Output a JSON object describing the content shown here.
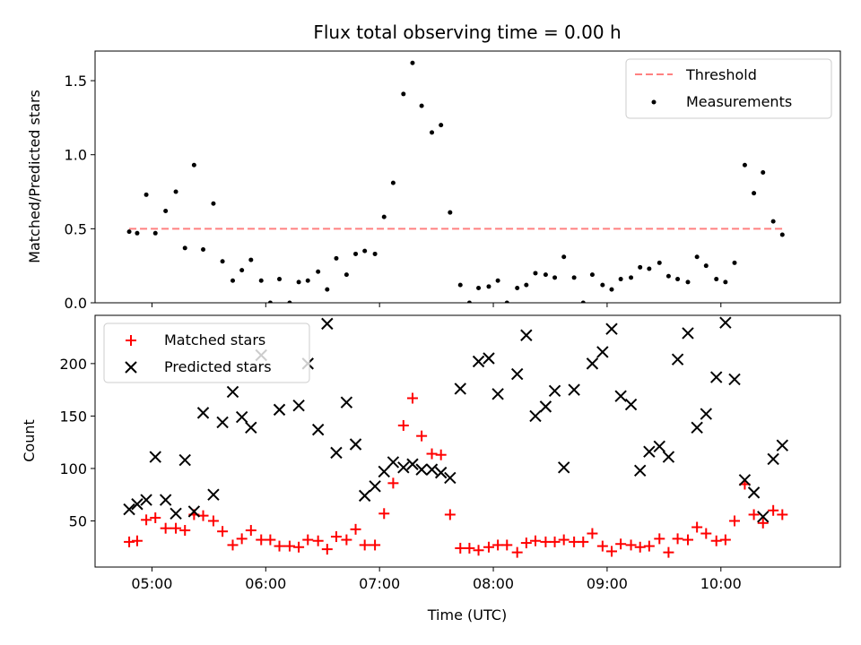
{
  "chart_data": {
    "title": "Flux total observing time = 0.00 h",
    "xlabel": "Time (UTC)",
    "x_ticks": [
      "05:00",
      "06:00",
      "07:00",
      "08:00",
      "09:00",
      "10:00"
    ],
    "x_tick_hours": [
      5,
      6,
      7,
      8,
      9,
      10
    ],
    "xlim": [
      4.5,
      11.05
    ],
    "panels": [
      {
        "type": "scatter",
        "ylabel": "Matched/Predicted stars",
        "ylim": [
          0,
          1.7
        ],
        "y_ticks": [
          0.0,
          0.5,
          1.0,
          1.5
        ],
        "y_tick_labels": [
          "0.0",
          "0.5",
          "1.0",
          "1.5"
        ],
        "legend_position": "top-right",
        "threshold": {
          "name": "Threshold",
          "value": 0.5,
          "x_range": [
            4.8,
            10.55
          ],
          "color": "#ff8080"
        },
        "measurements": {
          "name": "Measurements",
          "color": "#000000",
          "points": [
            [
              4.8,
              0.48
            ],
            [
              4.87,
              0.47
            ],
            [
              4.95,
              0.73
            ],
            [
              5.03,
              0.47
            ],
            [
              5.12,
              0.62
            ],
            [
              5.21,
              0.75
            ],
            [
              5.29,
              0.37
            ],
            [
              5.37,
              0.93
            ],
            [
              5.45,
              0.36
            ],
            [
              5.54,
              0.67
            ],
            [
              5.62,
              0.28
            ],
            [
              5.71,
              0.15
            ],
            [
              5.79,
              0.22
            ],
            [
              5.87,
              0.29
            ],
            [
              5.96,
              0.15
            ],
            [
              6.04,
              0.0
            ],
            [
              6.12,
              0.16
            ],
            [
              6.21,
              0.0
            ],
            [
              6.29,
              0.14
            ],
            [
              6.37,
              0.15
            ],
            [
              6.46,
              0.21
            ],
            [
              6.54,
              0.09
            ],
            [
              6.62,
              0.3
            ],
            [
              6.71,
              0.19
            ],
            [
              6.79,
              0.33
            ],
            [
              6.87,
              0.35
            ],
            [
              6.96,
              0.33
            ],
            [
              7.04,
              0.58
            ],
            [
              7.12,
              0.81
            ],
            [
              7.21,
              1.41
            ],
            [
              7.29,
              1.62
            ],
            [
              7.37,
              1.33
            ],
            [
              7.46,
              1.15
            ],
            [
              7.54,
              1.2
            ],
            [
              7.62,
              0.61
            ],
            [
              7.71,
              0.12
            ],
            [
              7.79,
              0.0
            ],
            [
              7.87,
              0.1
            ],
            [
              7.96,
              0.11
            ],
            [
              8.04,
              0.15
            ],
            [
              8.12,
              0.0
            ],
            [
              8.21,
              0.1
            ],
            [
              8.29,
              0.12
            ],
            [
              8.37,
              0.2
            ],
            [
              8.46,
              0.19
            ],
            [
              8.54,
              0.17
            ],
            [
              8.62,
              0.31
            ],
            [
              8.71,
              0.17
            ],
            [
              8.79,
              0.0
            ],
            [
              8.87,
              0.19
            ],
            [
              8.96,
              0.12
            ],
            [
              9.04,
              0.09
            ],
            [
              9.12,
              0.16
            ],
            [
              9.21,
              0.17
            ],
            [
              9.29,
              0.24
            ],
            [
              9.37,
              0.23
            ],
            [
              9.46,
              0.27
            ],
            [
              9.54,
              0.18
            ],
            [
              9.62,
              0.16
            ],
            [
              9.71,
              0.14
            ],
            [
              9.79,
              0.31
            ],
            [
              9.87,
              0.25
            ],
            [
              9.96,
              0.16
            ],
            [
              10.04,
              0.14
            ],
            [
              10.12,
              0.27
            ],
            [
              10.21,
              0.93
            ],
            [
              10.29,
              0.74
            ],
            [
              10.37,
              0.88
            ],
            [
              10.46,
              0.55
            ],
            [
              10.54,
              0.46
            ]
          ]
        }
      },
      {
        "type": "scatter",
        "ylabel": "Count",
        "ylim": [
          6,
          246
        ],
        "y_ticks": [
          50,
          100,
          150,
          200
        ],
        "y_tick_labels": [
          "50",
          "100",
          "150",
          "200"
        ],
        "legend_position": "top-left",
        "series": [
          {
            "name": "Matched stars",
            "marker": "plus",
            "color": "#ff0000",
            "points": [
              [
                4.8,
                30
              ],
              [
                4.87,
                31
              ],
              [
                4.95,
                51
              ],
              [
                5.03,
                53
              ],
              [
                5.12,
                43
              ],
              [
                5.21,
                43
              ],
              [
                5.29,
                41
              ],
              [
                5.37,
                56
              ],
              [
                5.45,
                55
              ],
              [
                5.54,
                50
              ],
              [
                5.62,
                40
              ],
              [
                5.71,
                27
              ],
              [
                5.79,
                33
              ],
              [
                5.87,
                41
              ],
              [
                5.96,
                32
              ],
              [
                6.04,
                32
              ],
              [
                6.12,
                26
              ],
              [
                6.21,
                26
              ],
              [
                6.29,
                25
              ],
              [
                6.37,
                32
              ],
              [
                6.46,
                31
              ],
              [
                6.54,
                23
              ],
              [
                6.62,
                35
              ],
              [
                6.71,
                32
              ],
              [
                6.79,
                42
              ],
              [
                6.87,
                27
              ],
              [
                6.96,
                27
              ],
              [
                7.04,
                57
              ],
              [
                7.12,
                86
              ],
              [
                7.21,
                141
              ],
              [
                7.29,
                167
              ],
              [
                7.37,
                131
              ],
              [
                7.46,
                114
              ],
              [
                7.54,
                113
              ],
              [
                7.62,
                56
              ],
              [
                7.71,
                24
              ],
              [
                7.79,
                24
              ],
              [
                7.87,
                22
              ],
              [
                7.96,
                25
              ],
              [
                8.04,
                27
              ],
              [
                8.12,
                27
              ],
              [
                8.21,
                20
              ],
              [
                8.29,
                29
              ],
              [
                8.37,
                31
              ],
              [
                8.46,
                30
              ],
              [
                8.54,
                30
              ],
              [
                8.62,
                32
              ],
              [
                8.71,
                30
              ],
              [
                8.79,
                30
              ],
              [
                8.87,
                38
              ],
              [
                8.96,
                26
              ],
              [
                9.04,
                21
              ],
              [
                9.12,
                28
              ],
              [
                9.21,
                27
              ],
              [
                9.29,
                25
              ],
              [
                9.37,
                26
              ],
              [
                9.46,
                33
              ],
              [
                9.54,
                20
              ],
              [
                9.62,
                33
              ],
              [
                9.71,
                32
              ],
              [
                9.79,
                44
              ],
              [
                9.87,
                38
              ],
              [
                9.96,
                31
              ],
              [
                10.04,
                32
              ],
              [
                10.12,
                50
              ],
              [
                10.21,
                85
              ],
              [
                10.29,
                56
              ],
              [
                10.37,
                48
              ],
              [
                10.46,
                60
              ],
              [
                10.54,
                56
              ]
            ]
          },
          {
            "name": "Predicted stars",
            "marker": "x",
            "color": "#000000",
            "points": [
              [
                4.8,
                61
              ],
              [
                4.87,
                66
              ],
              [
                4.95,
                70
              ],
              [
                5.03,
                111
              ],
              [
                5.12,
                70
              ],
              [
                5.21,
                57
              ],
              [
                5.29,
                108
              ],
              [
                5.37,
                59
              ],
              [
                5.45,
                153
              ],
              [
                5.54,
                75
              ],
              [
                5.62,
                144
              ],
              [
                5.71,
                173
              ],
              [
                5.79,
                149
              ],
              [
                5.87,
                139
              ],
              [
                5.96,
                208
              ],
              [
                6.12,
                156
              ],
              [
                6.29,
                160
              ],
              [
                6.37,
                200
              ],
              [
                6.46,
                137
              ],
              [
                6.54,
                238
              ],
              [
                6.62,
                115
              ],
              [
                6.71,
                163
              ],
              [
                6.79,
                123
              ],
              [
                6.87,
                74
              ],
              [
                6.96,
                83
              ],
              [
                7.04,
                97
              ],
              [
                7.12,
                106
              ],
              [
                7.21,
                101
              ],
              [
                7.29,
                104
              ],
              [
                7.37,
                99
              ],
              [
                7.46,
                99
              ],
              [
                7.54,
                96
              ],
              [
                7.62,
                91
              ],
              [
                7.71,
                176
              ],
              [
                7.87,
                202
              ],
              [
                7.96,
                205
              ],
              [
                8.04,
                171
              ],
              [
                8.21,
                190
              ],
              [
                8.29,
                227
              ],
              [
                8.37,
                150
              ],
              [
                8.46,
                159
              ],
              [
                8.54,
                174
              ],
              [
                8.62,
                101
              ],
              [
                8.71,
                175
              ],
              [
                8.87,
                200
              ],
              [
                8.96,
                211
              ],
              [
                9.04,
                233
              ],
              [
                9.12,
                169
              ],
              [
                9.21,
                161
              ],
              [
                9.29,
                98
              ],
              [
                9.37,
                116
              ],
              [
                9.46,
                121
              ],
              [
                9.54,
                111
              ],
              [
                9.62,
                204
              ],
              [
                9.71,
                229
              ],
              [
                9.79,
                139
              ],
              [
                9.87,
                152
              ],
              [
                9.96,
                187
              ],
              [
                10.04,
                239
              ],
              [
                10.12,
                185
              ],
              [
                10.21,
                89
              ],
              [
                10.29,
                77
              ],
              [
                10.37,
                54
              ],
              [
                10.46,
                109
              ],
              [
                10.54,
                122
              ]
            ]
          }
        ]
      }
    ]
  }
}
